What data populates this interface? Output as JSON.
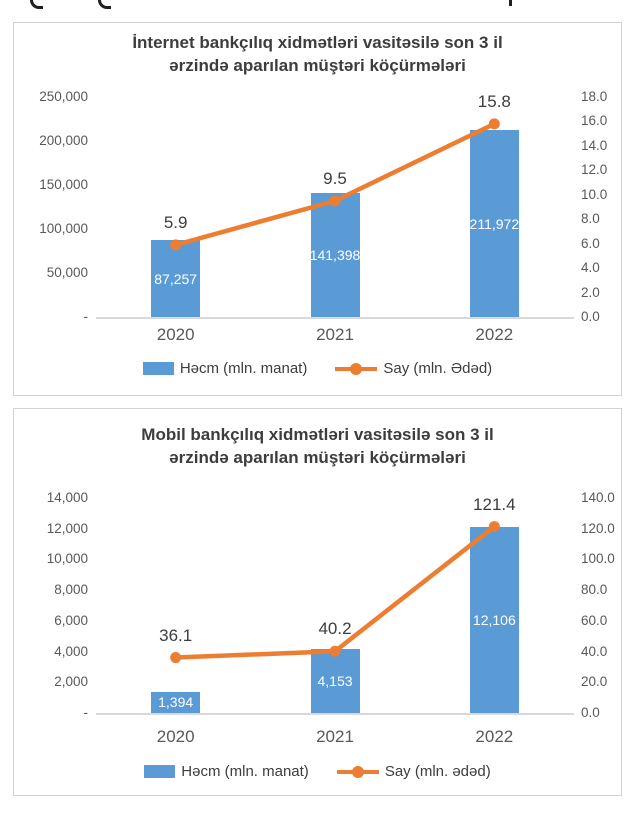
{
  "colors": {
    "bar": "#5B9BD5",
    "line": "#ED7D31",
    "title_text": "#3d3d3d",
    "tick_text": "#595959",
    "bar_value_text": "#ffffff",
    "axis_line": "#d9d9d9",
    "card_border": "#d2d2d2"
  },
  "chart_data": [
    {
      "type": "bar",
      "subtype": "bar+line combo, dual axis",
      "title": "İnternet bankçılıq xidmətləri vasitəsilə son 3 il ərzində aparılan müştəri köçürmələri",
      "title_lines": [
        "İnternet bankçılıq xidmətləri vasitəsilə son 3 il",
        "ərzində aparılan müştəri köçürmələri"
      ],
      "categories": [
        "2020",
        "2021",
        "2022"
      ],
      "series": [
        {
          "type": "bar",
          "name": "Həcm (mln. manat)",
          "axis": "left",
          "color": "#5B9BD5",
          "values": [
            87257,
            141398,
            211972
          ],
          "value_labels": [
            "87,257",
            "141,398",
            "211,972"
          ]
        },
        {
          "type": "line",
          "name": "Say (mln. Ədəd)",
          "axis": "right",
          "color": "#ED7D31",
          "values": [
            5.9,
            9.5,
            15.8
          ],
          "value_labels": [
            "5.9",
            "9.5",
            "15.8"
          ]
        }
      ],
      "axis_left": {
        "min": 0,
        "max": 250000,
        "step": 50000,
        "tick_labels": [
          "250,000",
          "200,000",
          "150,000",
          "100,000",
          "50,000",
          "-"
        ]
      },
      "axis_right": {
        "min": 0,
        "max": 18,
        "step": 2,
        "tick_labels": [
          "18.0",
          "16.0",
          "14.0",
          "12.0",
          "10.0",
          "8.0",
          "6.0",
          "4.0",
          "2.0",
          "0.0"
        ]
      },
      "legend_position": "bottom",
      "grid": false
    },
    {
      "type": "bar",
      "subtype": "bar+line combo, dual axis",
      "title": "Mobil bankçılıq xidmətləri vasitəsilə son 3 il ərzində aparılan müştəri köçürmələri",
      "title_lines": [
        "Mobil bankçılıq xidmətləri vasitəsilə son 3 il",
        "ərzində aparılan müştəri köçürmələri"
      ],
      "categories": [
        "2020",
        "2021",
        "2022"
      ],
      "series": [
        {
          "type": "bar",
          "name": "Həcm (mln. manat)",
          "axis": "left",
          "color": "#5B9BD5",
          "values": [
            1394,
            4153,
            12106
          ],
          "value_labels": [
            "1,394",
            "4,153",
            "12,106"
          ]
        },
        {
          "type": "line",
          "name": "Say (mln. ədəd)",
          "axis": "right",
          "color": "#ED7D31",
          "values": [
            36.1,
            40.2,
            121.4
          ],
          "value_labels": [
            "36.1",
            "40.2",
            "121.4"
          ]
        }
      ],
      "axis_left": {
        "min": 0,
        "max": 14000,
        "step": 2000,
        "tick_labels": [
          "14,000",
          "12,000",
          "10,000",
          "8,000",
          "6,000",
          "4,000",
          "2,000",
          "-"
        ]
      },
      "axis_right": {
        "min": 0,
        "max": 140,
        "step": 20,
        "tick_labels": [
          "140.0",
          "120.0",
          "100.0",
          "80.0",
          "60.0",
          "40.0",
          "20.0",
          "0.0"
        ]
      },
      "legend_position": "bottom",
      "grid": false
    }
  ]
}
